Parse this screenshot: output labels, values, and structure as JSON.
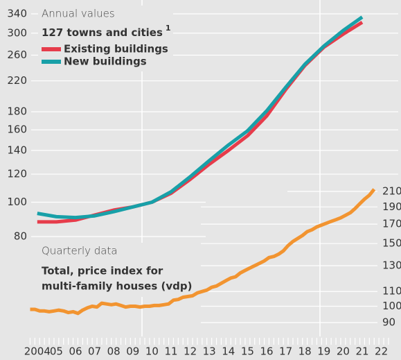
{
  "chart_data": [
    {
      "type": "line",
      "subtitle": "Annual values",
      "title": "127 towns and cities",
      "title_note": "1",
      "log_scale": true,
      "grid": true,
      "x": [
        2004,
        2005,
        2006,
        2007,
        2008,
        2009,
        2010,
        2011,
        2012,
        2013,
        2014,
        2015,
        2016,
        2017,
        2018,
        2019,
        2020,
        2021
      ],
      "series": [
        {
          "name": "Existing buildings",
          "color": "#e63c4b",
          "values": [
            88,
            88,
            89,
            92,
            95,
            97,
            100,
            106,
            116,
            128,
            140,
            154,
            175,
            208,
            243,
            274,
            298,
            322
          ]
        },
        {
          "name": "New buildings",
          "color": "#18a0a8",
          "values": [
            93,
            91,
            90.5,
            91.5,
            94,
            97,
            100,
            107,
            118,
            131,
            145,
            159,
            181,
            211,
            245,
            276,
            305,
            333
          ]
        }
      ],
      "ylim": [
        80,
        340
      ],
      "yticks": [
        80,
        100,
        120,
        140,
        160,
        180,
        220,
        260,
        300,
        340
      ],
      "xlim": [
        2004,
        2023
      ],
      "xticks": [
        {
          "value": 2004,
          "label": "2004"
        },
        {
          "value": 2005,
          "label": "05"
        },
        {
          "value": 2006,
          "label": "06"
        },
        {
          "value": 2007,
          "label": "07"
        },
        {
          "value": 2008,
          "label": "08"
        },
        {
          "value": 2009,
          "label": "09"
        },
        {
          "value": 2010,
          "label": "10"
        },
        {
          "value": 2011,
          "label": "11"
        },
        {
          "value": 2012,
          "label": "12"
        },
        {
          "value": 2013,
          "label": "13"
        },
        {
          "value": 2014,
          "label": "14"
        },
        {
          "value": 2015,
          "label": "15"
        },
        {
          "value": 2016,
          "label": "16"
        },
        {
          "value": 2017,
          "label": "17"
        },
        {
          "value": 2018,
          "label": "18"
        },
        {
          "value": 2019,
          "label": "19"
        },
        {
          "value": 2020,
          "label": "20"
        },
        {
          "value": 2021,
          "label": "21"
        },
        {
          "value": 2022,
          "label": "22"
        }
      ]
    },
    {
      "type": "line",
      "subtitle": "Quarterly data",
      "title_lines": [
        "Total, price index for",
        "multi-family houses (vdp)"
      ],
      "log_scale": true,
      "grid": true,
      "series": [
        {
          "color": "#f29430",
          "axis": "y2",
          "values": [
            98,
            98,
            97,
            97,
            96.5,
            97,
            97.5,
            97,
            96,
            96.5,
            95.5,
            97.5,
            99,
            100,
            99.5,
            102,
            101.5,
            101,
            101.5,
            100.5,
            99.5,
            100,
            100,
            99.5,
            100,
            100,
            100.5,
            100.5,
            101,
            101.5,
            104,
            104.5,
            106,
            106.5,
            107,
            109,
            110,
            111,
            113,
            114,
            116,
            118,
            120,
            121,
            124,
            126,
            128,
            130,
            132,
            134,
            137,
            138,
            140,
            143,
            148,
            152,
            155,
            158,
            162,
            164,
            167,
            169,
            171,
            173,
            175,
            177,
            180,
            183,
            188,
            194,
            200,
            205,
            213
          ]
        }
      ],
      "y2lim": [
        90,
        210
      ],
      "y2ticks": [
        90,
        100,
        110,
        130,
        150,
        170,
        190,
        210
      ]
    }
  ]
}
